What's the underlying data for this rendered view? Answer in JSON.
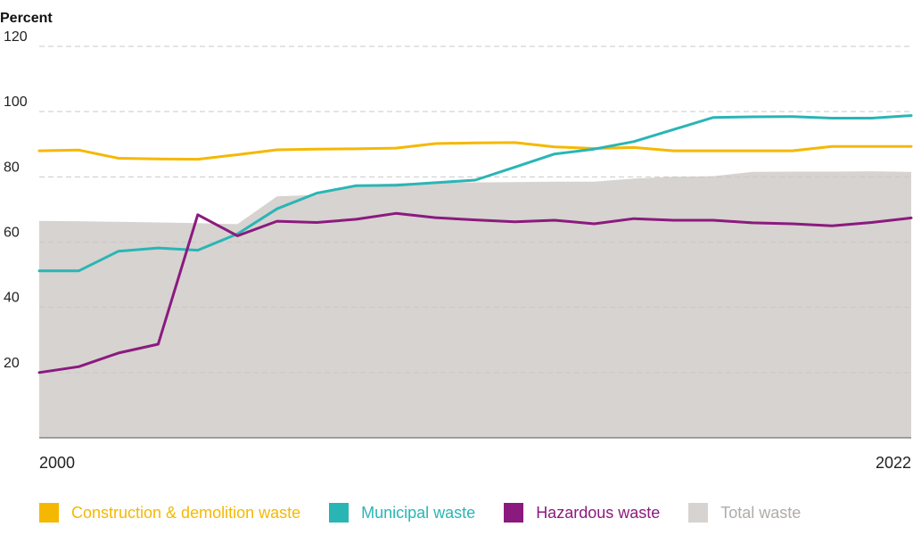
{
  "chart_data": {
    "type": "line",
    "ylabel": "Percent",
    "ylim": [
      0,
      120
    ],
    "yticks": [
      20,
      40,
      60,
      80,
      100,
      120
    ],
    "xlim": [
      2000,
      2022
    ],
    "xtick_labels": [
      "2000",
      "2022"
    ],
    "grid": true,
    "legend_position": "bottom",
    "x": [
      2000,
      2001,
      2002,
      2003,
      2004,
      2005,
      2006,
      2007,
      2008,
      2009,
      2010,
      2011,
      2012,
      2013,
      2014,
      2015,
      2016,
      2017,
      2018,
      2019,
      2020,
      2021,
      2022
    ],
    "series": [
      {
        "name": "Total waste",
        "kind": "area",
        "color": "#d6d3d0",
        "label_color": "#b0aca8",
        "values": [
          66.5,
          66.4,
          66.2,
          66,
          65.8,
          65.5,
          74,
          74.5,
          77.5,
          78,
          78.2,
          78.3,
          78.4,
          78.5,
          78.5,
          79.5,
          80,
          80.2,
          81.5,
          81.6,
          81.6,
          81.7,
          81.5
        ]
      },
      {
        "name": "Construction & demolition waste",
        "kind": "line",
        "color": "#f5b800",
        "label_color": "#f5b800",
        "values": [
          88,
          88.2,
          85.7,
          85.5,
          85.4,
          86.8,
          88.3,
          88.5,
          88.6,
          88.8,
          90.2,
          90.4,
          90.5,
          89.2,
          88.7,
          89,
          88,
          88,
          88,
          88,
          89.3,
          89.3,
          89.3
        ]
      },
      {
        "name": "Municipal waste",
        "kind": "line",
        "color": "#2ab5b5",
        "label_color": "#2ab5b5",
        "values": [
          51.2,
          51.2,
          57.2,
          58.2,
          57.5,
          62.5,
          70.2,
          75,
          77.3,
          77.4,
          78.2,
          79,
          83,
          87,
          88.5,
          90.8,
          94.5,
          98.2,
          98.4,
          98.5,
          98,
          98,
          98.8
        ]
      },
      {
        "name": "Hazardous waste",
        "kind": "line",
        "color": "#8b1a7e",
        "label_color": "#8b1a7e",
        "values": [
          20,
          21.8,
          26,
          28.7,
          68.4,
          61.9,
          66.4,
          66,
          67,
          68.8,
          67.5,
          66.8,
          66.2,
          66.7,
          65.6,
          67.2,
          66.7,
          66.7,
          65.9,
          65.6,
          65,
          66,
          67.4
        ]
      }
    ]
  }
}
